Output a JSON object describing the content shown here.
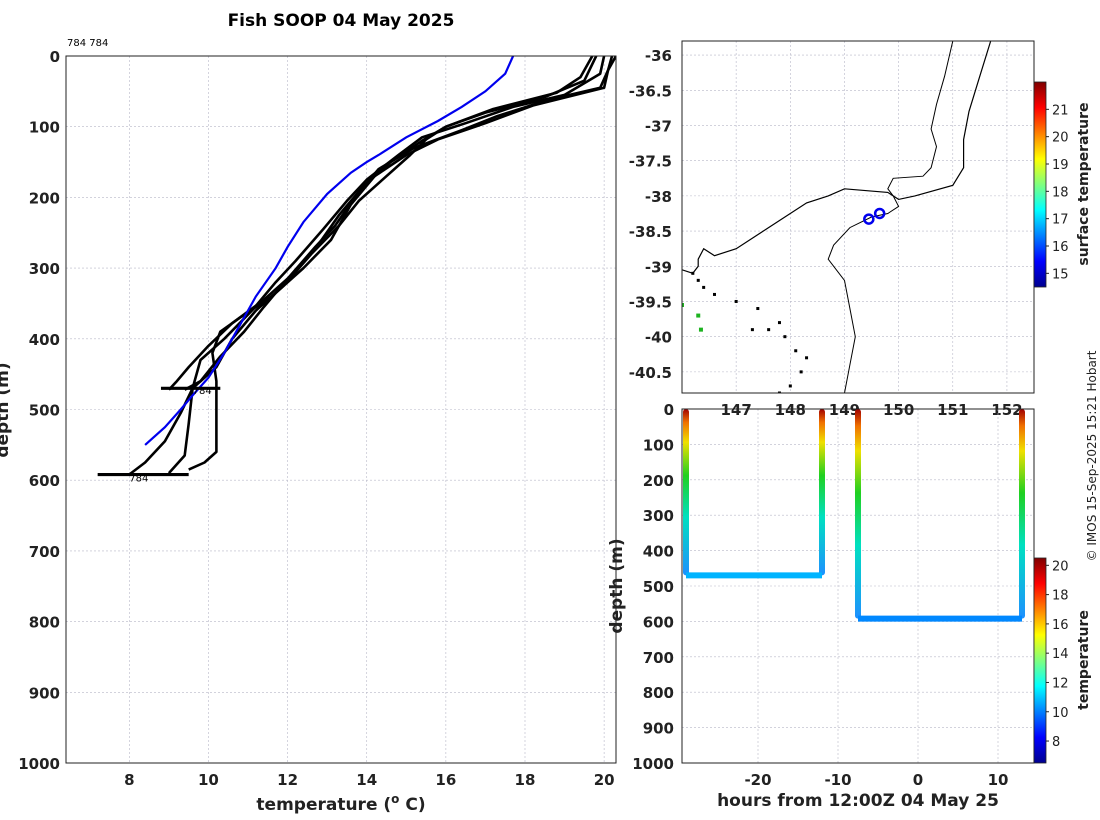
{
  "chart_data": [
    {
      "type": "line",
      "name": "profile-panel",
      "title": "Fish SOOP 04 May 2025",
      "xlabel": "temperature (",
      "xlabel_sup": "o",
      "xlabel_tail": " C)",
      "ylabel": "depth (m)",
      "xlim": [
        6.4,
        20.3
      ],
      "ylim": [
        0,
        1000
      ],
      "xticks": [
        8,
        10,
        12,
        14,
        16,
        18,
        20
      ],
      "yticks": [
        0,
        100,
        200,
        300,
        400,
        500,
        600,
        700,
        800,
        900,
        1000
      ],
      "top_note": "784 784",
      "profile_labels": [
        {
          "text": "784",
          "x": 9.6,
          "y": 478
        },
        {
          "text": "784",
          "x": 8.0,
          "y": 602
        }
      ],
      "climatology": {
        "name": "climatology",
        "color": "#0000ee",
        "points": [
          [
            17.7,
            0
          ],
          [
            17.5,
            25
          ],
          [
            17.0,
            50
          ],
          [
            16.4,
            72
          ],
          [
            15.8,
            92
          ],
          [
            15.0,
            115
          ],
          [
            14.3,
            140
          ],
          [
            14.0,
            150
          ],
          [
            13.6,
            165
          ],
          [
            13.0,
            195
          ],
          [
            12.4,
            235
          ],
          [
            12.0,
            270
          ],
          [
            11.7,
            300
          ],
          [
            11.2,
            340
          ],
          [
            10.8,
            380
          ],
          [
            10.4,
            420
          ],
          [
            10.0,
            455
          ],
          [
            9.6,
            480
          ],
          [
            9.3,
            500
          ],
          [
            8.9,
            525
          ],
          [
            8.4,
            550
          ]
        ]
      },
      "series": [
        {
          "name": "drop-1",
          "points": [
            [
              19.7,
              0
            ],
            [
              19.4,
              30
            ],
            [
              18.8,
              52
            ],
            [
              17.2,
              75
            ],
            [
              16.0,
              100
            ],
            [
              15.5,
              118
            ],
            [
              15.1,
              140
            ],
            [
              14.4,
              175
            ],
            [
              13.8,
              205
            ],
            [
              13.3,
              240
            ],
            [
              12.6,
              280
            ],
            [
              11.9,
              325
            ],
            [
              11.2,
              360
            ],
            [
              10.6,
              400
            ],
            [
              10.2,
              440
            ],
            [
              9.6,
              470
            ],
            [
              9.5,
              520
            ],
            [
              9.4,
              565
            ],
            [
              9.0,
              590
            ]
          ]
        },
        {
          "name": "drop-2",
          "points": [
            [
              20.0,
              0
            ],
            [
              19.9,
              25
            ],
            [
              19.0,
              55
            ],
            [
              17.7,
              72
            ],
            [
              16.5,
              95
            ],
            [
              15.4,
              115
            ],
            [
              14.8,
              140
            ],
            [
              14.0,
              175
            ],
            [
              13.5,
              205
            ],
            [
              12.9,
              245
            ],
            [
              12.2,
              290
            ],
            [
              11.7,
              320
            ],
            [
              11.1,
              360
            ],
            [
              10.4,
              400
            ],
            [
              9.8,
              430
            ],
            [
              9.6,
              470
            ],
            [
              9.3,
              505
            ],
            [
              8.9,
              545
            ],
            [
              8.4,
              575
            ],
            [
              8.0,
              592
            ]
          ]
        },
        {
          "name": "drop-3",
          "points": [
            [
              20.3,
              0
            ],
            [
              20.1,
              20
            ],
            [
              20.0,
              45
            ],
            [
              18.2,
              70
            ],
            [
              17.0,
              95
            ],
            [
              15.8,
              118
            ],
            [
              15.0,
              140
            ],
            [
              14.2,
              170
            ],
            [
              13.6,
              210
            ],
            [
              13.1,
              260
            ],
            [
              12.4,
              300
            ],
            [
              11.6,
              340
            ],
            [
              10.8,
              370
            ],
            [
              10.3,
              390
            ],
            [
              10.1,
              420
            ],
            [
              10.2,
              460
            ],
            [
              10.2,
              520
            ],
            [
              10.2,
              560
            ],
            [
              9.9,
              575
            ],
            [
              9.5,
              585
            ]
          ]
        },
        {
          "name": "drop-4",
          "points": [
            [
              20.2,
              0
            ],
            [
              20.1,
              20
            ],
            [
              19.9,
              45
            ],
            [
              18.6,
              62
            ],
            [
              17.3,
              85
            ],
            [
              16.4,
              105
            ],
            [
              15.2,
              130
            ],
            [
              14.3,
              160
            ],
            [
              13.7,
              200
            ],
            [
              13.2,
              240
            ],
            [
              12.7,
              270
            ],
            [
              12.0,
              315
            ],
            [
              11.4,
              355
            ],
            [
              10.9,
              390
            ],
            [
              10.3,
              425
            ],
            [
              9.8,
              460
            ],
            [
              9.4,
              472
            ]
          ]
        },
        {
          "name": "drop-5",
          "points": [
            [
              19.8,
              0
            ],
            [
              19.5,
              35
            ],
            [
              18.5,
              58
            ],
            [
              17.0,
              80
            ],
            [
              16.0,
              100
            ],
            [
              15.4,
              120
            ],
            [
              14.6,
              150
            ],
            [
              13.9,
              185
            ],
            [
              13.3,
              225
            ],
            [
              12.8,
              265
            ],
            [
              12.2,
              305
            ],
            [
              11.4,
              345
            ],
            [
              10.6,
              378
            ],
            [
              10.0,
              410
            ],
            [
              9.5,
              440
            ],
            [
              9.2,
              460
            ],
            [
              9.0,
              472
            ]
          ]
        }
      ],
      "bottom_markers": [
        {
          "depth": 470,
          "xmin": 8.8,
          "xmax": 10.3
        },
        {
          "depth": 592,
          "xmin": 7.2,
          "xmax": 9.5
        }
      ]
    },
    {
      "type": "scatter",
      "name": "map-panel",
      "xlim": [
        146.0,
        152.5
      ],
      "ylim": [
        -40.8,
        -35.8
      ],
      "xticks": [
        147,
        148,
        149,
        150,
        151,
        152
      ],
      "xtick_labels": [
        "147",
        "148",
        "149",
        "150",
        "151",
        "152"
      ],
      "yticks": [
        -36,
        -36.5,
        -37,
        -37.5,
        -38,
        -38.5,
        -39,
        -39.5,
        -40,
        -40.5
      ],
      "ytick_labels": [
        "-36",
        "-36.5",
        "-37",
        "-37.5",
        "-38",
        "-38.5",
        "-39",
        "-39.5",
        "-40",
        "-40.5"
      ],
      "coastline": [
        [
          151.7,
          -35.8
        ],
        [
          151.5,
          -36.3
        ],
        [
          151.3,
          -36.8
        ],
        [
          151.2,
          -37.2
        ],
        [
          151.2,
          -37.6
        ],
        [
          151.0,
          -37.85
        ],
        [
          150.3,
          -38.0
        ],
        [
          150.0,
          -38.05
        ],
        [
          149.8,
          -37.95
        ],
        [
          149.0,
          -37.9
        ],
        [
          148.7,
          -38.0
        ],
        [
          148.3,
          -38.1
        ],
        [
          147.9,
          -38.3
        ],
        [
          147.5,
          -38.5
        ],
        [
          147.0,
          -38.75
        ],
        [
          146.6,
          -38.85
        ],
        [
          146.4,
          -38.75
        ],
        [
          146.3,
          -38.9
        ],
        [
          146.3,
          -39.0
        ],
        [
          146.2,
          -39.1
        ],
        [
          146.0,
          -39.05
        ]
      ],
      "contour_200m": [
        [
          151.0,
          -35.8
        ],
        [
          150.85,
          -36.3
        ],
        [
          150.7,
          -36.7
        ],
        [
          150.6,
          -37.05
        ],
        [
          150.7,
          -37.3
        ],
        [
          150.6,
          -37.6
        ],
        [
          150.45,
          -37.72
        ],
        [
          149.9,
          -37.75
        ],
        [
          149.8,
          -37.9
        ],
        [
          149.9,
          -38.0
        ],
        [
          150.0,
          -38.15
        ],
        [
          149.8,
          -38.25
        ],
        [
          149.5,
          -38.3
        ],
        [
          149.1,
          -38.45
        ],
        [
          148.8,
          -38.7
        ],
        [
          148.7,
          -38.9
        ],
        [
          149.0,
          -39.2
        ],
        [
          149.1,
          -39.6
        ],
        [
          149.2,
          -40.0
        ],
        [
          149.1,
          -40.4
        ],
        [
          149.0,
          -40.8
        ]
      ],
      "islands": [
        [
          146.2,
          -39.1
        ],
        [
          146.3,
          -39.2
        ],
        [
          146.4,
          -39.3
        ],
        [
          146.6,
          -39.4
        ],
        [
          147.0,
          -39.5
        ],
        [
          147.4,
          -39.6
        ],
        [
          147.8,
          -39.8
        ],
        [
          147.9,
          -40.0
        ],
        [
          148.1,
          -40.2
        ],
        [
          148.3,
          -40.3
        ],
        [
          148.2,
          -40.5
        ],
        [
          148.0,
          -40.7
        ],
        [
          147.8,
          -40.8
        ],
        [
          147.6,
          -39.9
        ],
        [
          147.3,
          -39.9
        ]
      ],
      "drops": [
        {
          "lon": 149.45,
          "lat": -38.33,
          "color": "#0000ee"
        },
        {
          "lon": 149.65,
          "lat": -38.25,
          "color": "#0000ee"
        }
      ],
      "surface_points": [
        {
          "lon": 146.0,
          "lat": -39.55,
          "color": "#1db320"
        },
        {
          "lon": 146.3,
          "lat": -39.7,
          "color": "#1db320"
        },
        {
          "lon": 146.35,
          "lat": -39.9,
          "color": "#1db320"
        }
      ],
      "colorbar": {
        "label": "surface temperature",
        "range": [
          14.5,
          22
        ],
        "ticks": [
          15,
          16,
          17,
          18,
          19,
          20,
          21
        ]
      }
    },
    {
      "type": "scatter",
      "name": "timeseries-panel",
      "xlabel": "hours from 12:00Z 04 May 25",
      "ylabel": "depth (m)",
      "xlim": [
        -29.5,
        14.5
      ],
      "ylim": [
        0,
        1000
      ],
      "xticks": [
        -20,
        -10,
        0,
        10
      ],
      "yticks": [
        0,
        100,
        200,
        300,
        400,
        500,
        600,
        700,
        800,
        900,
        1000
      ],
      "segments": [
        {
          "x": [
            -29.0,
            -29.0,
            -12.0,
            -12.0
          ],
          "y": [
            0,
            470,
            470,
            0
          ],
          "tdeep": 9.6
        },
        {
          "x": [
            -7.5,
            -7.5,
            13.0,
            13.0
          ],
          "y": [
            0,
            592,
            592,
            0
          ],
          "tdeep": 9.0
        }
      ],
      "gap_line": {
        "x": [
          -8.4,
          -7.5
        ],
        "y": [
          0,
          0
        ]
      },
      "colorbar": {
        "label": "temperature",
        "range": [
          6.5,
          20.5
        ],
        "ticks": [
          8,
          10,
          12,
          14,
          16,
          18,
          20
        ]
      }
    }
  ],
  "credit": "© IMOS 15-Sep-2025 15:21 Hobart"
}
